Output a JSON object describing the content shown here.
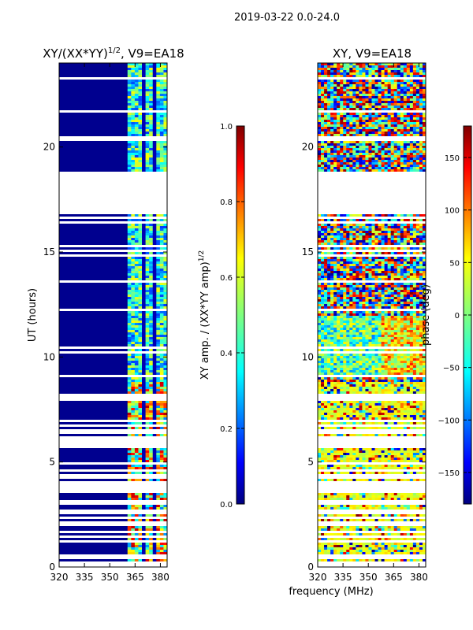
{
  "figure_title": "2019-03-22 0.0-24.0",
  "chart_data": [
    {
      "type": "heatmap",
      "title": "XY/(XX*YY)",
      "title_exponent": "1/2",
      "title_suffix": ", V9=EA18",
      "xlabel": "",
      "ylabel": "UT (hours)",
      "x_ticks": [
        "320",
        "335",
        "350",
        "365",
        "380"
      ],
      "x_tick_values": [
        320,
        335,
        350,
        365,
        380
      ],
      "y_ticks": [
        "0",
        "5",
        "10",
        "15",
        "20"
      ],
      "y_tick_values": [
        0,
        5,
        10,
        15,
        20
      ],
      "xlim": [
        320,
        384
      ],
      "ylim": [
        0,
        24
      ],
      "data_gap_hours": [
        16.8,
        18.8
      ],
      "colorbar": {
        "label": "XY amp. / (XX*YY amp)",
        "label_exponent": "1/2",
        "range": [
          0.0,
          1.0
        ],
        "ticks": [
          "0.0",
          "0.2",
          "0.4",
          "0.6",
          "0.8",
          "1.0"
        ],
        "tick_values": [
          0.0,
          0.2,
          0.4,
          0.6,
          0.8,
          1.0
        ]
      }
    },
    {
      "type": "heatmap",
      "title": "XY, V9=EA18",
      "xlabel": "frequency (MHz)",
      "ylabel": "",
      "x_ticks": [
        "320",
        "335",
        "350",
        "365",
        "380"
      ],
      "x_tick_values": [
        320,
        335,
        350,
        365,
        380
      ],
      "y_ticks": [
        "0",
        "5",
        "10",
        "15",
        "20"
      ],
      "y_tick_values": [
        0,
        5,
        10,
        15,
        20
      ],
      "xlim": [
        320,
        384
      ],
      "ylim": [
        0,
        24
      ],
      "data_gap_hours": [
        16.8,
        18.8
      ],
      "colorbar": {
        "label": "phase (deg)",
        "range": [
          -180,
          180
        ],
        "ticks": [
          "−150",
          "−100",
          "−50",
          "0",
          "50",
          "100",
          "150"
        ],
        "tick_values": [
          -150,
          -100,
          -50,
          0,
          50,
          100,
          150
        ]
      }
    }
  ]
}
